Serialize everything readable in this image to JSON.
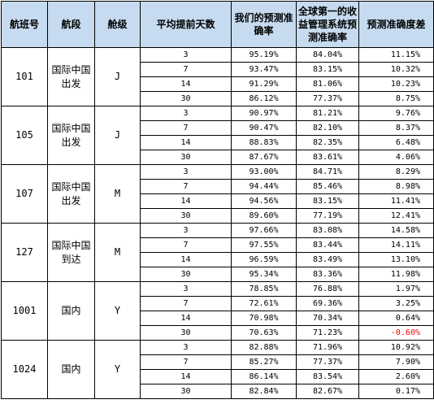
{
  "headers": {
    "flight": "航班号",
    "route": "航段",
    "class": "舱级",
    "days": "平均提前天数",
    "ours": "我们的预测准确率",
    "global": "全球第一的收益管理系统预测准确率",
    "diff": "预测准确度差"
  },
  "groups": [
    {
      "flight": "101",
      "route": "国际中国出发",
      "class": "J",
      "rows": [
        {
          "days": "3",
          "ours": "95.19%",
          "global": "84.04%",
          "diff": "11.15%"
        },
        {
          "days": "7",
          "ours": "93.47%",
          "global": "83.15%",
          "diff": "10.32%"
        },
        {
          "days": "14",
          "ours": "91.29%",
          "global": "81.06%",
          "diff": "10.23%"
        },
        {
          "days": "30",
          "ours": "86.12%",
          "global": "77.37%",
          "diff": "8.75%"
        }
      ]
    },
    {
      "flight": "105",
      "route": "国际中国出发",
      "class": "J",
      "rows": [
        {
          "days": "3",
          "ours": "90.97%",
          "global": "81.21%",
          "diff": "9.76%"
        },
        {
          "days": "7",
          "ours": "90.47%",
          "global": "82.10%",
          "diff": "8.37%"
        },
        {
          "days": "14",
          "ours": "88.83%",
          "global": "82.35%",
          "diff": "6.48%"
        },
        {
          "days": "30",
          "ours": "87.67%",
          "global": "83.61%",
          "diff": "4.06%"
        }
      ]
    },
    {
      "flight": "107",
      "route": "国际中国出发",
      "class": "M",
      "rows": [
        {
          "days": "3",
          "ours": "93.00%",
          "global": "84.71%",
          "diff": "8.29%"
        },
        {
          "days": "7",
          "ours": "94.44%",
          "global": "85.46%",
          "diff": "8.98%"
        },
        {
          "days": "14",
          "ours": "94.56%",
          "global": "83.15%",
          "diff": "11.41%"
        },
        {
          "days": "30",
          "ours": "89.60%",
          "global": "77.19%",
          "diff": "12.41%"
        }
      ]
    },
    {
      "flight": "127",
      "route": "国际中国到达",
      "class": "M",
      "rows": [
        {
          "days": "3",
          "ours": "97.66%",
          "global": "83.08%",
          "diff": "14.58%"
        },
        {
          "days": "7",
          "ours": "97.55%",
          "global": "83.44%",
          "diff": "14.11%"
        },
        {
          "days": "14",
          "ours": "96.59%",
          "global": "83.49%",
          "diff": "13.10%"
        },
        {
          "days": "30",
          "ours": "95.34%",
          "global": "83.36%",
          "diff": "11.98%"
        }
      ]
    },
    {
      "flight": "1001",
      "route": "国内",
      "class": "Y",
      "rows": [
        {
          "days": "3",
          "ours": "78.85%",
          "global": "76.88%",
          "diff": "1.97%"
        },
        {
          "days": "7",
          "ours": "72.61%",
          "global": "69.36%",
          "diff": "3.25%"
        },
        {
          "days": "14",
          "ours": "70.98%",
          "global": "70.34%",
          "diff": "0.64%"
        },
        {
          "days": "30",
          "ours": "70.63%",
          "global": "71.23%",
          "diff": "-0.60%",
          "negative": true
        }
      ]
    },
    {
      "flight": "1024",
      "route": "国内",
      "class": "Y",
      "rows": [
        {
          "days": "3",
          "ours": "82.88%",
          "global": "71.96%",
          "diff": "10.92%"
        },
        {
          "days": "7",
          "ours": "85.27%",
          "global": "77.37%",
          "diff": "7.90%"
        },
        {
          "days": "14",
          "ours": "86.14%",
          "global": "83.54%",
          "diff": "2.60%"
        },
        {
          "days": "30",
          "ours": "82.84%",
          "global": "82.67%",
          "diff": "0.17%"
        }
      ]
    }
  ],
  "colors": {
    "header_bg": "#c6dbef",
    "negative_text": "#ff0000"
  }
}
